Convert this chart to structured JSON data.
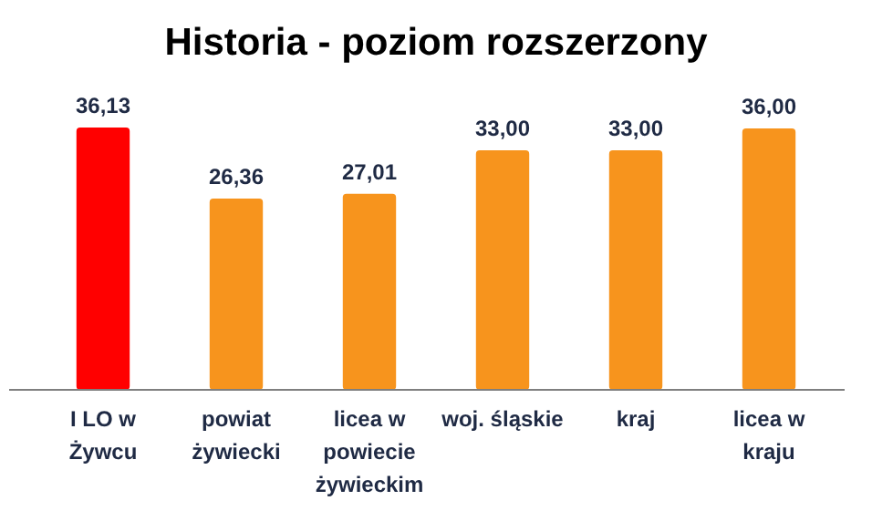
{
  "chart_data": {
    "type": "bar",
    "title": "Historia - poziom rozszerzony",
    "categories": [
      "I LO w Żywcu",
      "powiat żywiecki",
      "licea w powiecie żywieckim",
      "woj. śląskie",
      "kraj",
      "licea w kraju"
    ],
    "values": [
      36.13,
      26.36,
      27.01,
      33.0,
      33.0,
      36.0
    ],
    "value_labels": [
      "36,13",
      "26,36",
      "27,01",
      "33,00",
      "33,00",
      "36,00"
    ],
    "colors": [
      "#ff0000",
      "#f7941d",
      "#f7941d",
      "#f7941d",
      "#f7941d",
      "#f7941d"
    ]
  }
}
